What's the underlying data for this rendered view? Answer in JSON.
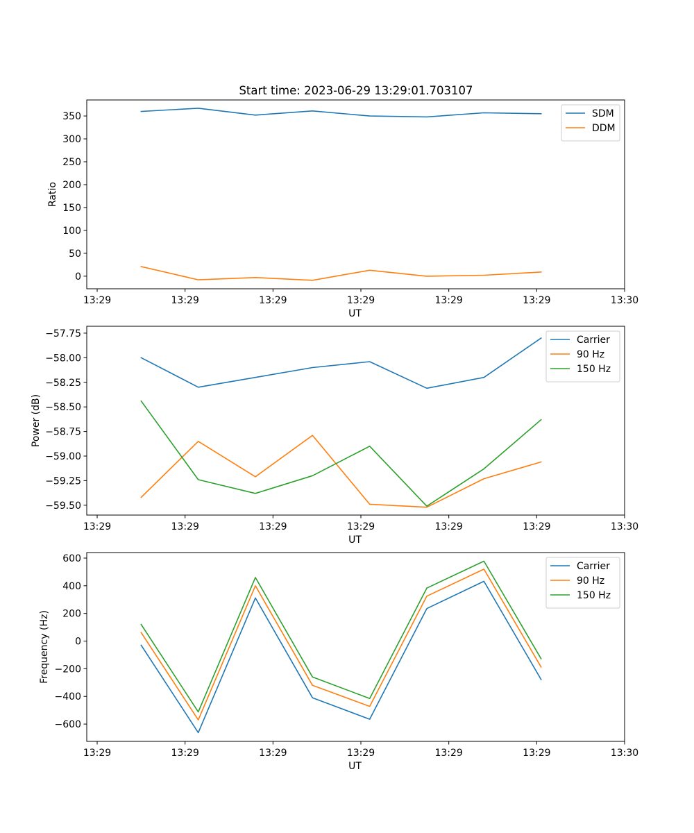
{
  "figure": {
    "title": "Start time: 2023-06-29 13:29:01.703107"
  },
  "chart_data": [
    {
      "type": "line",
      "title": "Start time: 2023-06-29 13:29:01.703107",
      "xlabel": "UT",
      "ylabel": "Ratio",
      "x_ticks": [
        "13:29",
        "13:29",
        "13:29",
        "13:29",
        "13:29",
        "13:29",
        "13:30"
      ],
      "y_ticks": [
        0,
        50,
        100,
        150,
        200,
        250,
        300,
        350
      ],
      "y_tick_labels": [
        "0",
        "50",
        "100",
        "150",
        "200",
        "250",
        "300",
        "350"
      ],
      "xlim": [
        -0.1186,
        6.0
      ],
      "ylim": [
        -27.5,
        385
      ],
      "legend_position": "upper right",
      "grid": false,
      "series": [
        {
          "name": "SDM",
          "color": "#1f77b4",
          "x": [
            0.5,
            1.15,
            1.8,
            2.45,
            3.1,
            3.75,
            4.4,
            5.05
          ],
          "y": [
            360,
            367,
            352,
            361,
            350,
            348,
            357,
            355
          ]
        },
        {
          "name": "DDM",
          "color": "#ff7f0e",
          "x": [
            0.5,
            1.15,
            1.8,
            2.45,
            3.1,
            3.75,
            4.4,
            5.05
          ],
          "y": [
            21,
            -8,
            -3,
            -9,
            13,
            0,
            2,
            9
          ]
        }
      ]
    },
    {
      "type": "line",
      "xlabel": "UT",
      "ylabel": "Power (dB)",
      "x_ticks": [
        "13:29",
        "13:29",
        "13:29",
        "13:29",
        "13:29",
        "13:29",
        "13:30"
      ],
      "y_ticks": [
        -59.5,
        -59.25,
        -59.0,
        -58.75,
        -58.5,
        -58.25,
        -58.0,
        -57.75
      ],
      "y_tick_labels": [
        "−59.50",
        "−59.25",
        "−59.00",
        "−58.75",
        "−58.50",
        "−58.25",
        "−58.00",
        "−57.75"
      ],
      "xlim": [
        -0.1186,
        6.0
      ],
      "ylim": [
        -59.6,
        -57.68
      ],
      "legend_position": "upper right",
      "grid": false,
      "series": [
        {
          "name": "Carrier",
          "color": "#1f77b4",
          "x": [
            0.5,
            1.15,
            1.8,
            2.45,
            3.1,
            3.75,
            4.4,
            5.05
          ],
          "y": [
            -58.0,
            -58.3,
            -58.2,
            -58.1,
            -58.04,
            -58.31,
            -58.2,
            -57.8
          ]
        },
        {
          "name": "90 Hz",
          "color": "#ff7f0e",
          "x": [
            0.5,
            1.15,
            1.8,
            2.45,
            3.1,
            3.75,
            4.4,
            5.05
          ],
          "y": [
            -59.42,
            -58.85,
            -59.21,
            -58.79,
            -59.49,
            -59.52,
            -59.23,
            -59.06
          ]
        },
        {
          "name": "150 Hz",
          "color": "#2ca02c",
          "x": [
            0.5,
            1.15,
            1.8,
            2.45,
            3.1,
            3.75,
            4.4,
            5.05
          ],
          "y": [
            -58.44,
            -59.24,
            -59.38,
            -59.2,
            -58.9,
            -59.51,
            -59.13,
            -58.63
          ]
        }
      ]
    },
    {
      "type": "line",
      "xlabel": "UT",
      "ylabel": "Frequency (Hz)",
      "x_ticks": [
        "13:29",
        "13:29",
        "13:29",
        "13:29",
        "13:29",
        "13:29",
        "13:30"
      ],
      "y_ticks": [
        -600,
        -400,
        -200,
        0,
        200,
        400,
        600
      ],
      "y_tick_labels": [
        "−600",
        "−400",
        "−200",
        "0",
        "200",
        "400",
        "600"
      ],
      "xlim": [
        -0.1186,
        6.0
      ],
      "ylim": [
        -725,
        640
      ],
      "legend_position": "upper right",
      "grid": false,
      "series": [
        {
          "name": "Carrier",
          "color": "#1f77b4",
          "x": [
            0.5,
            1.15,
            1.8,
            2.45,
            3.1,
            3.75,
            4.4,
            5.05
          ],
          "y": [
            -30,
            -662,
            312,
            -410,
            -565,
            235,
            432,
            -278
          ]
        },
        {
          "name": "90 Hz",
          "color": "#ff7f0e",
          "x": [
            0.5,
            1.15,
            1.8,
            2.45,
            3.1,
            3.75,
            4.4,
            5.05
          ],
          "y": [
            62,
            -570,
            400,
            -320,
            -472,
            325,
            520,
            -188
          ]
        },
        {
          "name": "150 Hz",
          "color": "#2ca02c",
          "x": [
            0.5,
            1.15,
            1.8,
            2.45,
            3.1,
            3.75,
            4.4,
            5.05
          ],
          "y": [
            120,
            -512,
            460,
            -260,
            -415,
            383,
            578,
            -128
          ]
        }
      ]
    }
  ]
}
